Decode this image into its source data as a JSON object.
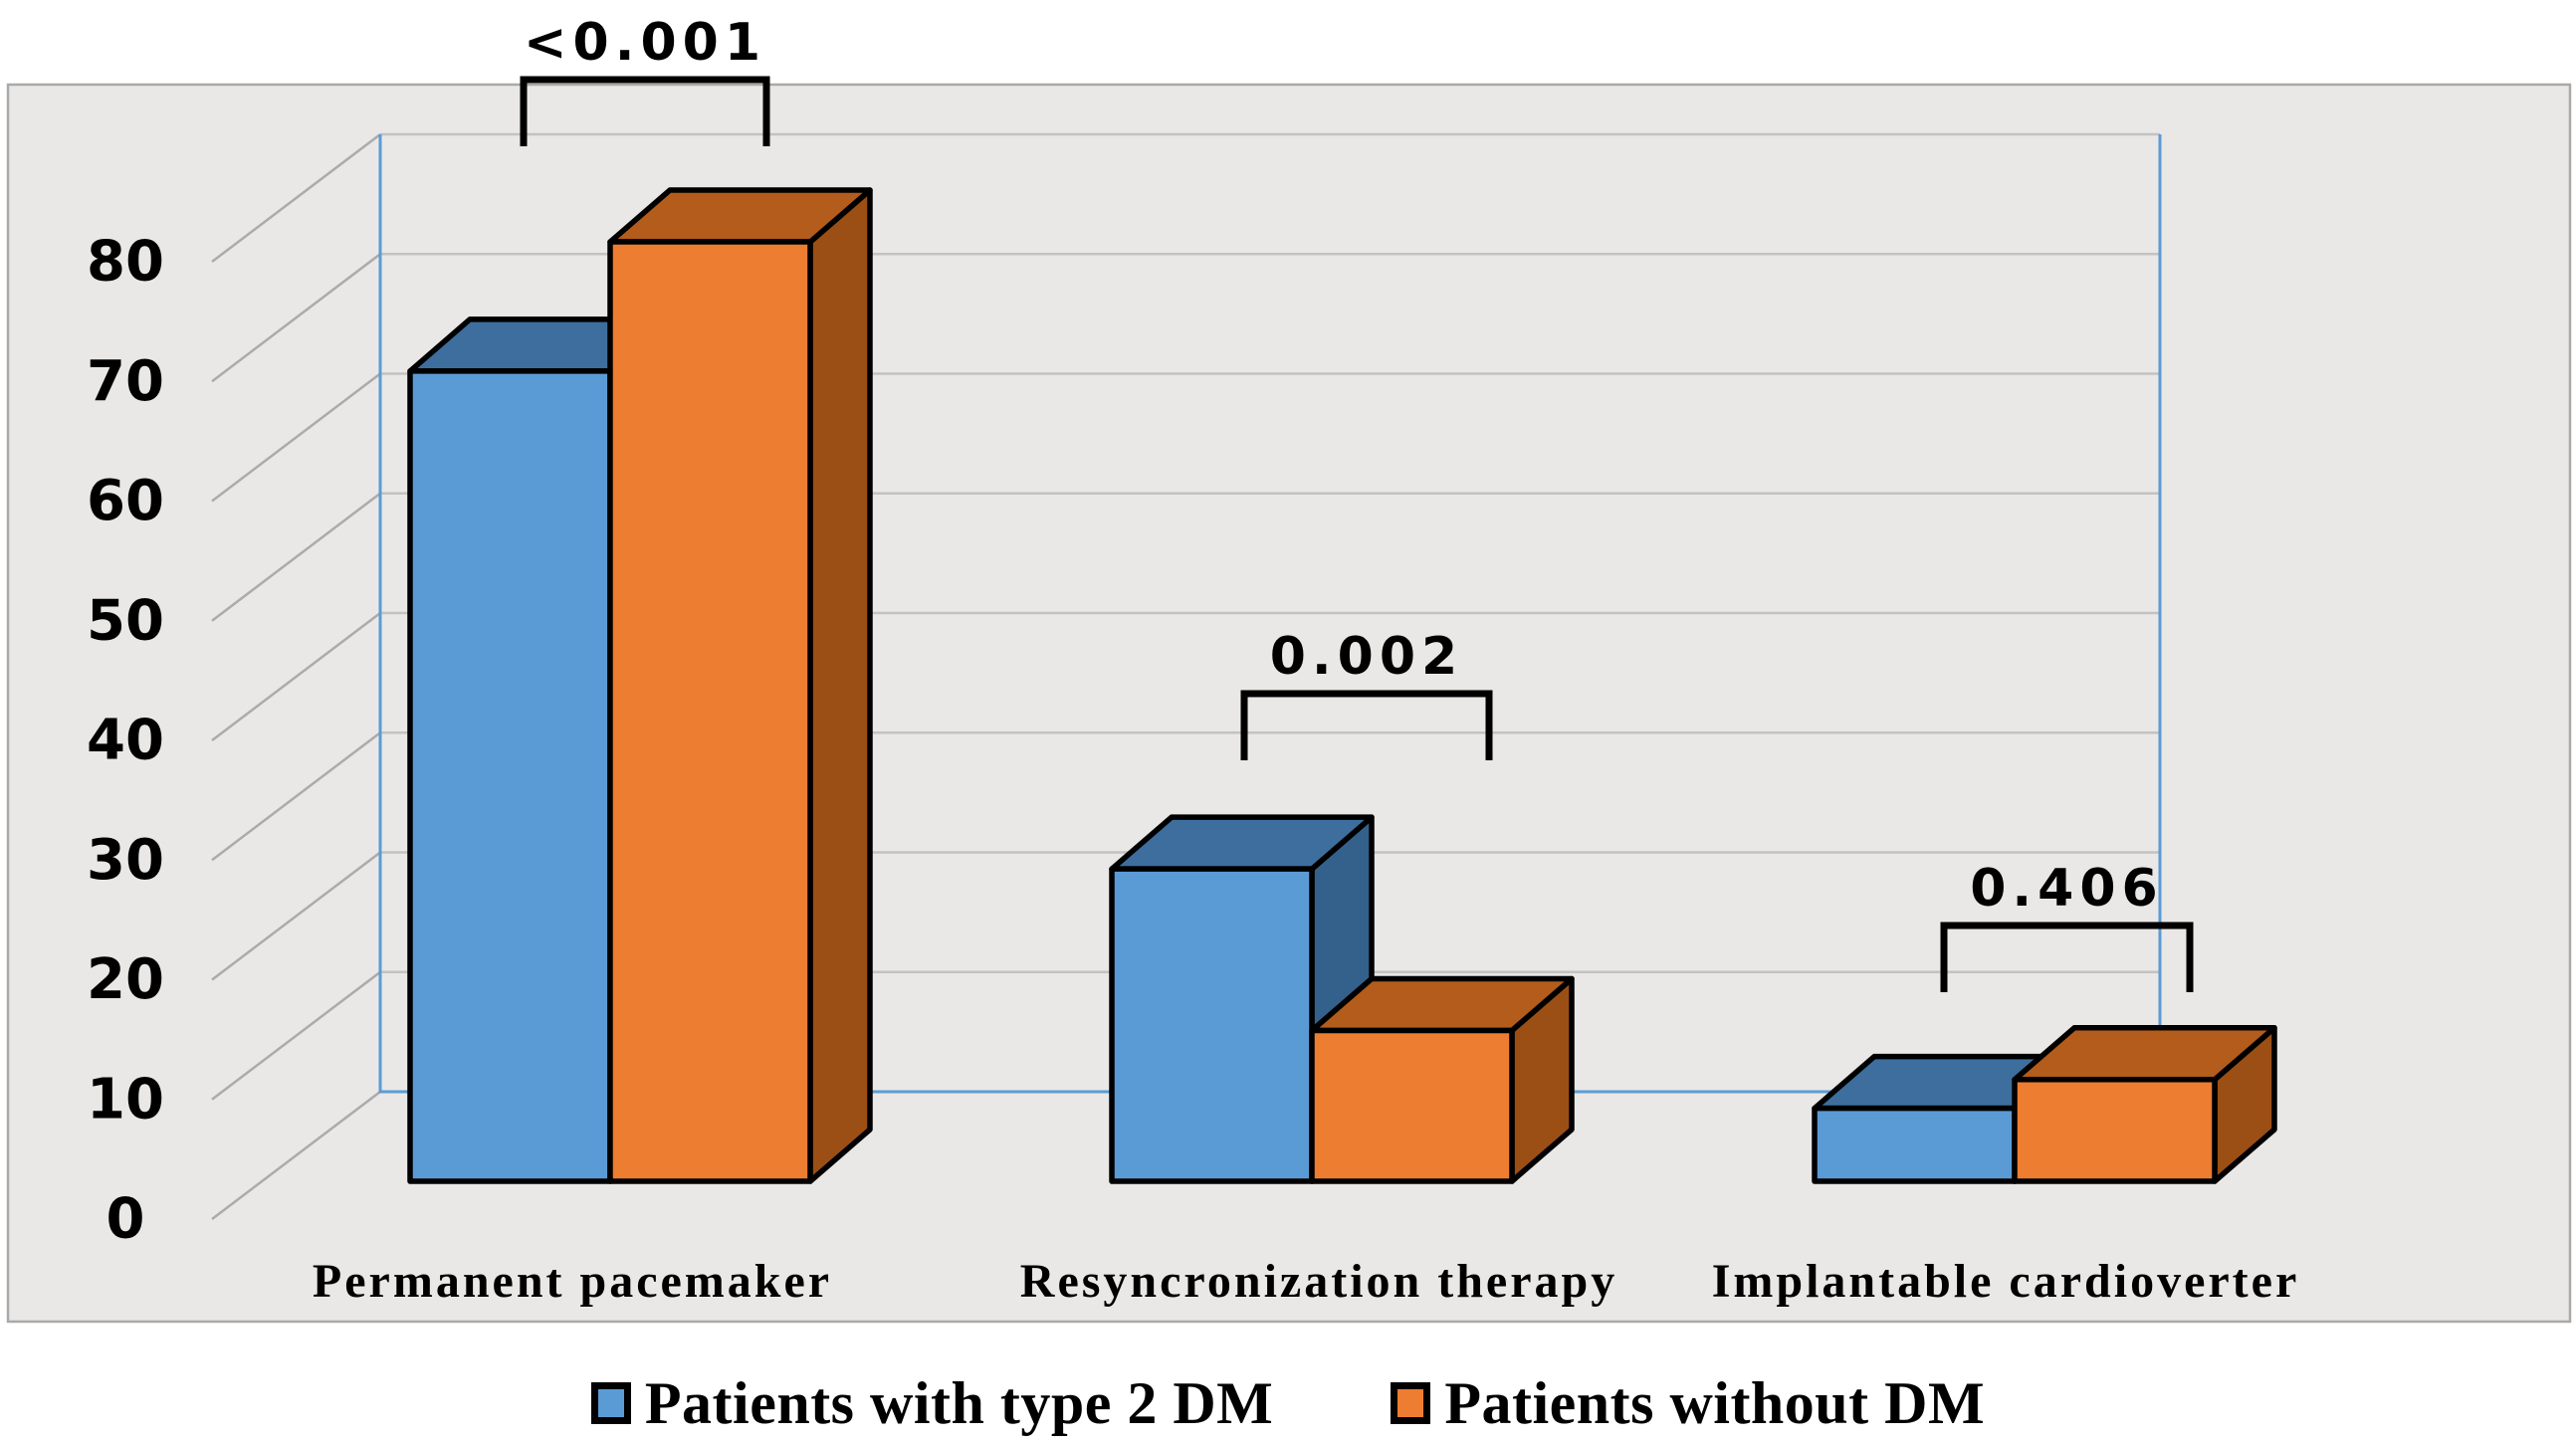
{
  "figure": {
    "background": "#FFFFFF",
    "plot_background": "#E9E8E6",
    "plot_border_color": "#A9A9A9",
    "grid_color": "#C2C2C2",
    "tick_leader_color": "#ABABAB",
    "axis_frame_color": "#5B9BD5",
    "bar_outline_color": "#000000",
    "text_color": "#000000"
  },
  "chart_data": {
    "type": "bar",
    "style": "3d-clustered-column",
    "title": "",
    "xlabel": "",
    "ylabel": "",
    "categories": [
      "Permanent pacemaker",
      "Resyncronization therapy",
      "Implantable cardioverter"
    ],
    "series": [
      {
        "name": "Patients with type 2 DM",
        "color": "#5B9BD5",
        "color_top": "#3D6E9E",
        "color_side": "#34618C",
        "values": [
          67.7,
          26.1,
          6.1
        ]
      },
      {
        "name": "Patients without DM",
        "color": "#ED7D31",
        "color_top": "#B35C1C",
        "color_side": "#9C4F15",
        "values": [
          78.5,
          12.6,
          8.5
        ]
      }
    ],
    "p_values": [
      "<0.001",
      "0.002",
      "0.406"
    ],
    "ylim": [
      0,
      80
    ],
    "yticks": [
      0,
      10,
      20,
      30,
      40,
      50,
      60,
      70,
      80
    ],
    "grid": true,
    "legend_position": "bottom"
  }
}
